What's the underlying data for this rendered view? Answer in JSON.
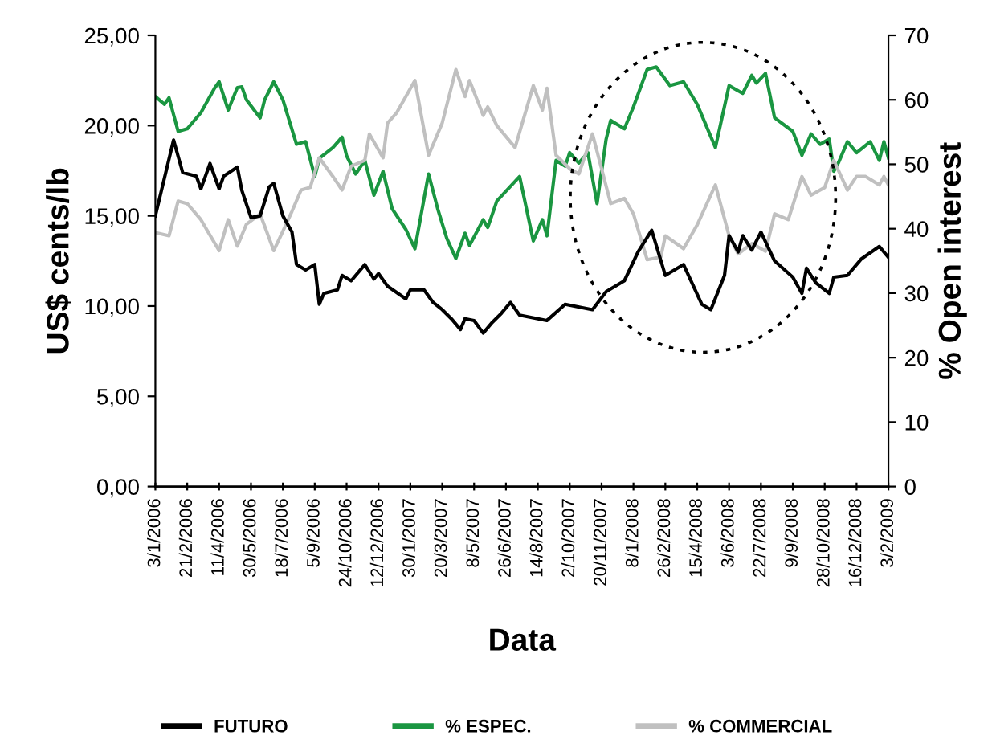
{
  "chart_data": {
    "type": "line",
    "xlabel": "Data",
    "ylabel": "US$ cents/lb",
    "y2label": "% Open interest",
    "xlim": [
      "2006-01-03",
      "2009-02-03"
    ],
    "xticks": [
      {
        "value": "2006-01-03",
        "label": "3/1/2006"
      },
      {
        "value": "2006-02-21",
        "label": "21/2/2006"
      },
      {
        "value": "2006-04-11",
        "label": "11/4/2006"
      },
      {
        "value": "2006-05-30",
        "label": "30/5/2006"
      },
      {
        "value": "2006-07-18",
        "label": "18/7/2006"
      },
      {
        "value": "2006-09-05",
        "label": "5/9/2006"
      },
      {
        "value": "2006-10-24",
        "label": "24/10/2006"
      },
      {
        "value": "2006-12-12",
        "label": "12/12/2006"
      },
      {
        "value": "2007-01-30",
        "label": "30/1/2007"
      },
      {
        "value": "2007-03-20",
        "label": "20/3/2007"
      },
      {
        "value": "2007-05-08",
        "label": "8/5/2007"
      },
      {
        "value": "2007-06-26",
        "label": "26/6/2007"
      },
      {
        "value": "2007-08-14",
        "label": "14/8/2007"
      },
      {
        "value": "2007-10-02",
        "label": "2/10/2007"
      },
      {
        "value": "2007-11-20",
        "label": "20/11/2007"
      },
      {
        "value": "2008-01-08",
        "label": "8/1/2008"
      },
      {
        "value": "2008-02-26",
        "label": "26/2/2008"
      },
      {
        "value": "2008-04-15",
        "label": "15/4/2008"
      },
      {
        "value": "2008-06-03",
        "label": "3/6/2008"
      },
      {
        "value": "2008-07-22",
        "label": "22/7/2008"
      },
      {
        "value": "2008-09-09",
        "label": "9/9/2008"
      },
      {
        "value": "2008-10-28",
        "label": "28/10/2008"
      },
      {
        "value": "2008-12-16",
        "label": "16/12/2008"
      },
      {
        "value": "2009-02-03",
        "label": "3/2/2009"
      }
    ],
    "ylim": [
      0,
      25
    ],
    "yticks": [
      {
        "value": 0,
        "label": "0,00"
      },
      {
        "value": 5,
        "label": "5,00"
      },
      {
        "value": 10,
        "label": "10,00"
      },
      {
        "value": 15,
        "label": "15,00"
      },
      {
        "value": 20,
        "label": "20,00"
      },
      {
        "value": 25,
        "label": "25,00"
      }
    ],
    "y2lim": [
      0,
      70
    ],
    "y2ticks": [
      0,
      10,
      20,
      30,
      40,
      50,
      60,
      70
    ],
    "grid": false,
    "legend": "bottom",
    "marker": "none",
    "line_style": "solid",
    "series": [
      {
        "name": "FUTURO",
        "color": "#000000",
        "x": [
          "2006-01-03",
          "2006-01-31",
          "2006-02-14",
          "2006-03-07",
          "2006-03-14",
          "2006-03-28",
          "2006-04-11",
          "2006-04-18",
          "2006-05-09",
          "2006-05-16",
          "2006-05-30",
          "2006-06-13",
          "2006-06-27",
          "2006-07-04",
          "2006-07-18",
          "2006-08-01",
          "2006-08-08",
          "2006-08-22",
          "2006-09-05",
          "2006-09-12",
          "2006-09-19",
          "2006-10-10",
          "2006-10-17",
          "2006-10-31",
          "2006-11-21",
          "2006-12-05",
          "2006-12-12",
          "2006-12-26",
          "2007-01-23",
          "2007-01-30",
          "2007-02-20",
          "2007-03-06",
          "2007-03-20",
          "2007-04-03",
          "2007-04-17",
          "2007-04-24",
          "2007-05-08",
          "2007-05-22",
          "2007-06-05",
          "2007-06-19",
          "2007-07-03",
          "2007-07-17",
          "2007-08-28",
          "2007-09-25",
          "2007-11-06",
          "2007-11-27",
          "2007-12-25",
          "2008-01-15",
          "2008-02-05",
          "2008-02-26",
          "2008-03-25",
          "2008-04-22",
          "2008-05-06",
          "2008-05-27",
          "2008-06-03",
          "2008-06-17",
          "2008-06-24",
          "2008-07-08",
          "2008-07-22",
          "2008-08-12",
          "2008-09-09",
          "2008-09-23",
          "2008-09-30",
          "2008-10-14",
          "2008-11-04",
          "2008-11-11",
          "2008-12-02",
          "2008-12-23",
          "2009-01-20",
          "2009-02-03"
        ],
        "values": [
          15.0,
          19.2,
          17.4,
          17.2,
          16.5,
          17.9,
          16.5,
          17.2,
          17.7,
          16.4,
          14.9,
          15.0,
          16.6,
          16.8,
          15.0,
          14.1,
          12.3,
          12.0,
          12.3,
          10.1,
          10.7,
          10.9,
          11.7,
          11.4,
          12.3,
          11.5,
          11.8,
          11.1,
          10.4,
          10.9,
          10.9,
          10.2,
          9.8,
          9.3,
          8.7,
          9.3,
          9.2,
          8.5,
          9.1,
          9.6,
          10.2,
          9.5,
          9.2,
          10.1,
          9.8,
          10.8,
          11.4,
          13.0,
          14.2,
          11.7,
          12.3,
          10.1,
          9.8,
          11.7,
          13.9,
          13.0,
          13.9,
          13.1,
          14.1,
          12.5,
          11.6,
          10.7,
          12.1,
          11.3,
          10.7,
          11.6,
          11.7,
          12.6,
          13.3,
          12.7
        ]
      },
      {
        "name": "% ESPEC.",
        "color": "#1a9641",
        "axis": "y2",
        "x": [
          "2006-01-03",
          "2006-01-17",
          "2006-01-24",
          "2006-02-07",
          "2006-02-21",
          "2006-03-14",
          "2006-04-04",
          "2006-04-11",
          "2006-04-25",
          "2006-05-09",
          "2006-05-16",
          "2006-05-23",
          "2006-06-13",
          "2006-06-20",
          "2006-07-04",
          "2006-07-18",
          "2006-08-08",
          "2006-08-22",
          "2006-09-05",
          "2006-09-12",
          "2006-10-03",
          "2006-10-17",
          "2006-10-24",
          "2006-11-07",
          "2006-11-21",
          "2006-12-05",
          "2006-12-19",
          "2007-01-02",
          "2007-01-23",
          "2007-02-06",
          "2007-02-27",
          "2007-03-13",
          "2007-03-27",
          "2007-04-10",
          "2007-04-24",
          "2007-05-01",
          "2007-05-22",
          "2007-05-29",
          "2007-06-12",
          "2007-07-17",
          "2007-08-07",
          "2007-08-21",
          "2007-08-28",
          "2007-09-11",
          "2007-09-25",
          "2007-10-02",
          "2007-10-16",
          "2007-10-30",
          "2007-11-13",
          "2007-11-27",
          "2007-12-04",
          "2007-12-25",
          "2008-01-08",
          "2008-01-29",
          "2008-02-12",
          "2008-03-04",
          "2008-03-25",
          "2008-04-15",
          "2008-05-13",
          "2008-06-03",
          "2008-06-24",
          "2008-07-08",
          "2008-07-15",
          "2008-07-29",
          "2008-08-12",
          "2008-09-09",
          "2008-09-23",
          "2008-10-07",
          "2008-10-21",
          "2008-11-04",
          "2008-11-11",
          "2008-11-18",
          "2008-12-02",
          "2008-12-16",
          "2009-01-06",
          "2009-01-20",
          "2009-01-27",
          "2009-02-03"
        ],
        "values": [
          60.5,
          59.3,
          60.3,
          55.1,
          55.5,
          58.0,
          61.8,
          62.8,
          58.4,
          61.9,
          62.0,
          60.0,
          57.2,
          60.0,
          62.8,
          60.0,
          53.1,
          53.5,
          48.1,
          50.9,
          52.6,
          54.2,
          51.3,
          48.5,
          50.6,
          45.2,
          48.9,
          43.1,
          39.9,
          36.9,
          48.5,
          43.1,
          38.5,
          35.4,
          39.3,
          37.4,
          41.4,
          40.2,
          44.3,
          48.1,
          38.1,
          41.4,
          38.9,
          50.6,
          49.7,
          51.8,
          50.2,
          51.8,
          43.9,
          53.9,
          56.8,
          55.5,
          58.9,
          64.7,
          65.1,
          62.2,
          62.8,
          59.3,
          52.6,
          62.2,
          61.0,
          63.8,
          62.6,
          64.1,
          57.2,
          55.1,
          51.4,
          54.7,
          53.1,
          53.9,
          48.9,
          50.2,
          53.5,
          51.8,
          53.5,
          50.6,
          53.5,
          51.0
        ]
      },
      {
        "name": "% COMMERCIAL",
        "color": "#c0c0c0",
        "axis": "y2",
        "x": [
          "2006-01-03",
          "2006-01-24",
          "2006-02-07",
          "2006-02-21",
          "2006-03-14",
          "2006-04-11",
          "2006-04-25",
          "2006-05-09",
          "2006-05-23",
          "2006-06-13",
          "2006-07-04",
          "2006-07-18",
          "2006-08-01",
          "2006-08-15",
          "2006-08-29",
          "2006-09-12",
          "2006-10-03",
          "2006-10-17",
          "2006-10-31",
          "2006-11-21",
          "2006-11-28",
          "2006-12-19",
          "2006-12-26",
          "2007-01-09",
          "2007-02-06",
          "2007-02-27",
          "2007-03-20",
          "2007-04-10",
          "2007-04-24",
          "2007-05-01",
          "2007-05-22",
          "2007-05-29",
          "2007-06-12",
          "2007-07-10",
          "2007-08-07",
          "2007-08-21",
          "2007-08-28",
          "2007-09-11",
          "2007-10-02",
          "2007-10-16",
          "2007-11-06",
          "2007-12-04",
          "2007-12-25",
          "2008-01-08",
          "2008-01-29",
          "2008-02-19",
          "2008-02-26",
          "2008-03-25",
          "2008-04-15",
          "2008-05-13",
          "2008-06-03",
          "2008-06-17",
          "2008-07-08",
          "2008-07-29",
          "2008-08-12",
          "2008-09-02",
          "2008-09-23",
          "2008-10-07",
          "2008-10-28",
          "2008-11-11",
          "2008-12-02",
          "2008-12-16",
          "2008-12-30",
          "2009-01-20",
          "2009-01-27",
          "2009-02-03"
        ],
        "values": [
          39.4,
          38.9,
          44.3,
          43.9,
          41.4,
          36.6,
          41.4,
          37.3,
          40.7,
          42.3,
          36.6,
          39.6,
          42.7,
          46.0,
          46.4,
          51.0,
          48.1,
          46.0,
          49.7,
          50.6,
          54.7,
          51.0,
          56.4,
          58.0,
          63.0,
          51.4,
          56.4,
          64.7,
          60.5,
          63.0,
          57.6,
          58.9,
          56.0,
          52.6,
          62.2,
          58.4,
          61.8,
          51.4,
          49.3,
          48.5,
          54.7,
          43.9,
          44.7,
          42.3,
          35.2,
          35.6,
          38.9,
          36.9,
          40.6,
          46.8,
          38.9,
          36.1,
          37.7,
          36.5,
          42.3,
          41.4,
          48.1,
          45.2,
          46.4,
          50.6,
          46.0,
          48.1,
          48.1,
          46.8,
          48.1,
          46.8
        ]
      }
    ]
  }
}
